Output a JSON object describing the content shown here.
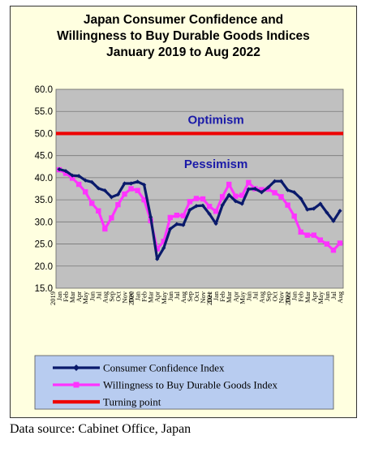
{
  "source": "Data source: Cabinet Office, Japan",
  "chart_data": {
    "type": "line",
    "title_lines": [
      "Japan Consumer Confidence and",
      "Willingness to Buy Durable Goods Indices",
      "January 2019 to Aug 2022"
    ],
    "ylim": [
      15,
      60
    ],
    "yticks": [
      "15.0",
      "20.0",
      "25.0",
      "30.0",
      "35.0",
      "40.0",
      "45.0",
      "50.0",
      "55.0",
      "60.0"
    ],
    "grid": true,
    "legend_position": "bottom",
    "x_labels": [
      "Jan",
      "Feb",
      "Mar",
      "Apr",
      "May",
      "Jun",
      "Jul",
      "Aug",
      "Sep",
      "Oct",
      "Nov",
      "Dec",
      "Jan",
      "Feb",
      "Mar",
      "Apr",
      "May",
      "Jun",
      "Jul",
      "Aug",
      "Sep",
      "Oct",
      "Nov",
      "Dec",
      "Jan",
      "Feb",
      "Mar",
      "Apr",
      "May",
      "Jun",
      "Jul",
      "Aug",
      "Sep",
      "Oct",
      "Nov",
      "Dec",
      "Jan",
      "Feb",
      "Mar",
      "Apr",
      "May",
      "Jun",
      "Jul",
      "Aug"
    ],
    "year_labels": [
      {
        "index": 0,
        "label": "2019"
      },
      {
        "index": 12,
        "label": "2020"
      },
      {
        "index": 24,
        "label": "2021"
      },
      {
        "index": 36,
        "label": "2022"
      }
    ],
    "annotations": [
      {
        "text": "Optimism",
        "x_index": 24,
        "y": 52.2
      },
      {
        "text": "Pessimism",
        "x_index": 24,
        "y": 42.2
      }
    ],
    "series": [
      {
        "name": "Consumer Confidence Index",
        "color": "#0a1a6b",
        "values": [
          41.9,
          41.5,
          40.5,
          40.4,
          39.4,
          39.0,
          37.6,
          37.1,
          35.6,
          36.2,
          38.7,
          38.7,
          39.1,
          38.4,
          31.1,
          21.6,
          24.1,
          28.4,
          29.5,
          29.3,
          32.7,
          33.6,
          33.7,
          31.8,
          29.6,
          33.8,
          36.1,
          34.7,
          34.1,
          37.4,
          37.5,
          36.7,
          37.8,
          39.2,
          39.2,
          37.2,
          36.7,
          35.3,
          32.8,
          33.0,
          34.1,
          32.1,
          30.2,
          32.5
        ]
      },
      {
        "name": "Willingness to Buy Durable Goods Index",
        "color": "#ff33ff",
        "values": [
          41.8,
          41.0,
          39.9,
          38.5,
          36.8,
          34.2,
          32.5,
          28.4,
          30.9,
          33.9,
          36.3,
          37.5,
          37.1,
          35.0,
          30.3,
          23.9,
          25.6,
          31.0,
          31.5,
          31.4,
          34.6,
          35.3,
          35.2,
          33.5,
          32.4,
          35.7,
          38.5,
          35.8,
          36.0,
          38.9,
          37.5,
          37.3,
          37.4,
          36.6,
          35.7,
          33.8,
          31.3,
          27.7,
          27.0,
          27.0,
          25.9,
          25.0,
          23.6,
          25.2
        ]
      },
      {
        "name": "Turning point",
        "color": "#ee0000",
        "values": [
          50,
          50,
          50,
          50,
          50,
          50,
          50,
          50,
          50,
          50,
          50,
          50,
          50,
          50,
          50,
          50,
          50,
          50,
          50,
          50,
          50,
          50,
          50,
          50,
          50,
          50,
          50,
          50,
          50,
          50,
          50,
          50,
          50,
          50,
          50,
          50,
          50,
          50,
          50,
          50,
          50,
          50,
          50,
          50
        ]
      }
    ]
  }
}
